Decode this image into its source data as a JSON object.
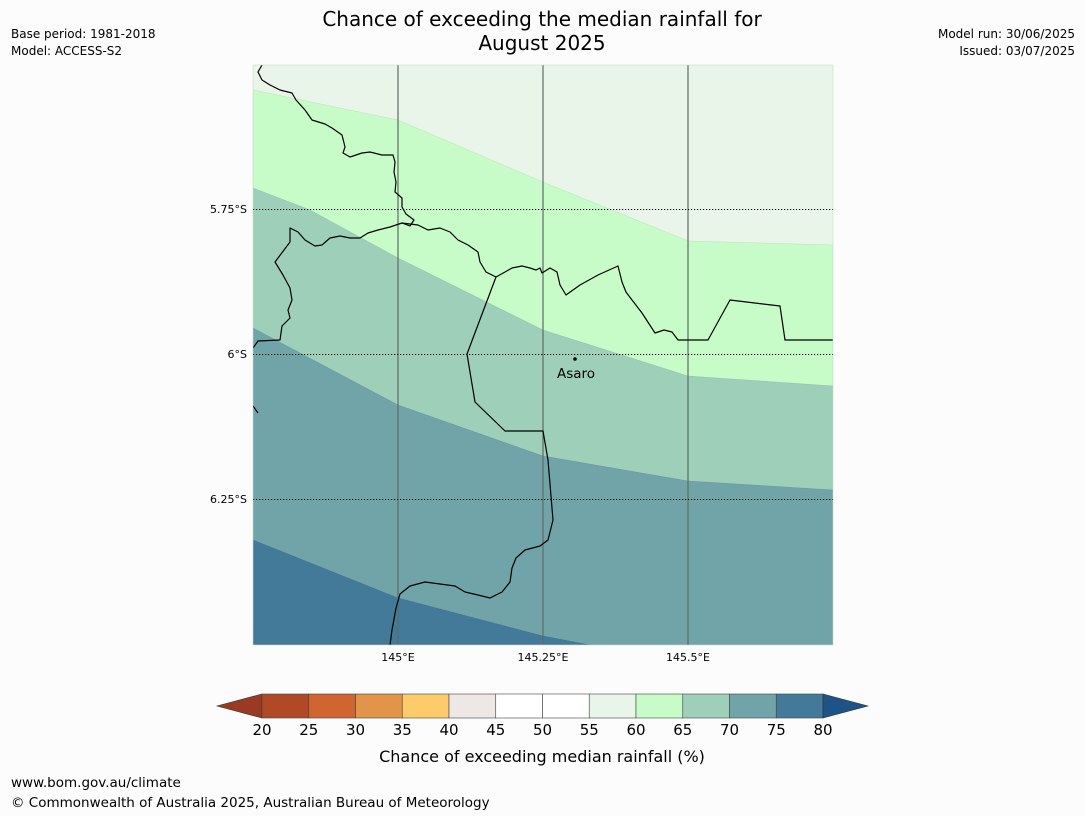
{
  "title_line1": "Chance of exceeding the median rainfall for",
  "title_line2": "August 2025",
  "base_period": "Base period: 1981-2018",
  "model": "Model: ACCESS-S2",
  "model_run": "Model run: 30/06/2025",
  "issued": "Issued: 03/07/2025",
  "map": {
    "lat_labels": [
      "5.75°S",
      "6°S",
      "6.25°S"
    ],
    "lon_labels": [
      "145°E",
      "145.25°E",
      "145.5°E"
    ],
    "place": {
      "name": "Asaro"
    }
  },
  "colorbar": {
    "label": "Chance of exceeding median rainfall (%)",
    "ticks": [
      "20",
      "25",
      "30",
      "35",
      "40",
      "45",
      "50",
      "55",
      "60",
      "65",
      "70",
      "75",
      "80"
    ],
    "colors": [
      "#b04a26",
      "#d0652f",
      "#e2944a",
      "#fdcb6a",
      "#ede8e4",
      "#ffffff",
      "#ffffff",
      "#e9f5e9",
      "#c7fbc7",
      "#9ecfb9",
      "#70a4a8",
      "#437a99"
    ],
    "under_color": "#9a3a22",
    "over_color": "#1e5387"
  },
  "footer_url": "www.bom.gov.au/climate",
  "footer_copyright": "© Commonwealth of Australia 2025, Australian Bureau of Meteorology"
}
